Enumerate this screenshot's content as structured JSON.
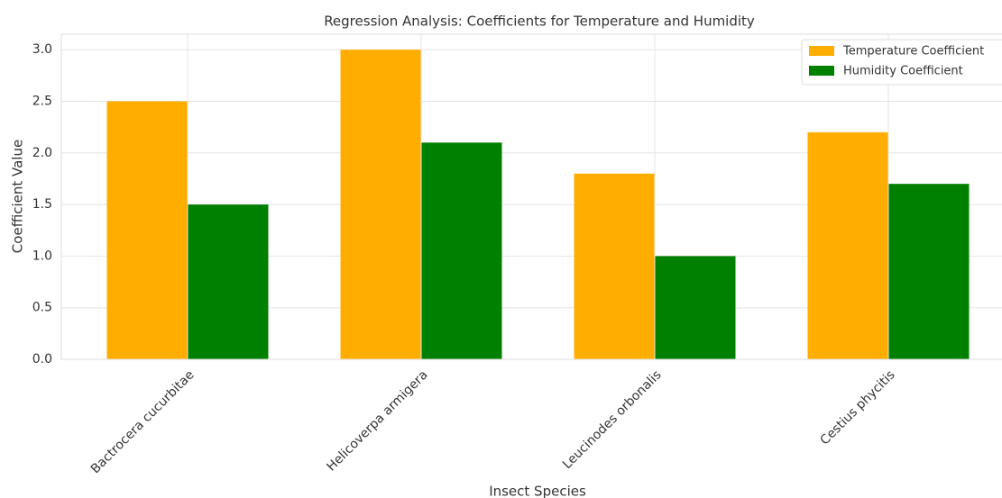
{
  "chart_data": {
    "type": "bar",
    "title": "Regression Analysis: Coefficients for Temperature and Humidity",
    "x_label": "Insect Species",
    "y_label": "Coefficient Value",
    "categories": [
      "Bactrocera cucurbitae",
      "Helicoverpa armigera",
      "Leucinodes orbonalis",
      "Cestius phycitis"
    ],
    "series": [
      {
        "name": "Temperature Coefficient",
        "color": "#ffae00",
        "values": [
          2.5,
          3.0,
          1.8,
          2.2
        ]
      },
      {
        "name": "Humidity Coefficient",
        "color": "#008000",
        "values": [
          1.5,
          2.1,
          1.0,
          1.7
        ]
      }
    ],
    "ylim": [
      0,
      3.15
    ],
    "yticks": [
      {
        "value": 0,
        "label": "0.0"
      },
      {
        "value": 0.5,
        "label": "0.5"
      },
      {
        "value": 1,
        "label": "1.0"
      },
      {
        "value": 1.5,
        "label": "1.5"
      },
      {
        "value": 2,
        "label": "2.0"
      },
      {
        "value": 2.5,
        "label": "2.5"
      },
      {
        "value": 3,
        "label": "3.0"
      }
    ],
    "grid": true,
    "legend": "upper right"
  }
}
